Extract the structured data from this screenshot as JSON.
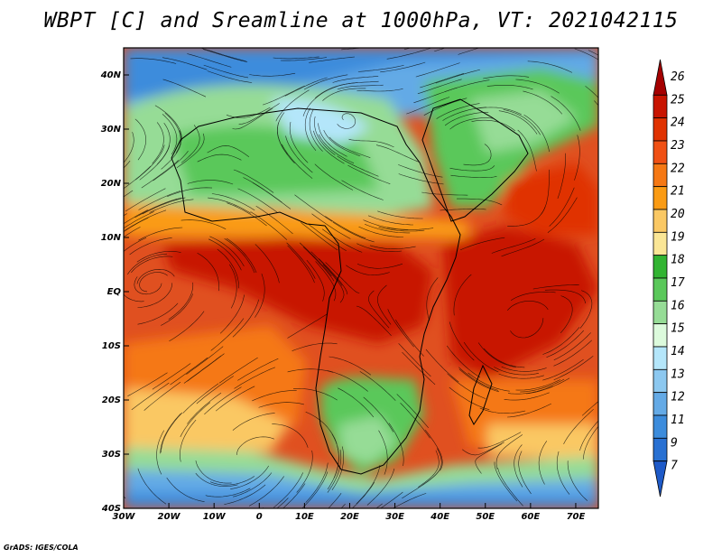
{
  "title": "WBPT [C] and Sreamline at 1000hPa, VT: 2021042115",
  "credit": "GrADS: IGES/COLA",
  "map": {
    "lon_range": [
      -30,
      75
    ],
    "lat_range": [
      -40,
      45
    ],
    "x_ticks": [
      {
        "lon": -30,
        "label": "30W"
      },
      {
        "lon": -20,
        "label": "20W"
      },
      {
        "lon": -10,
        "label": "10W"
      },
      {
        "lon": 0,
        "label": "0"
      },
      {
        "lon": 10,
        "label": "10E"
      },
      {
        "lon": 20,
        "label": "20E"
      },
      {
        "lon": 30,
        "label": "30E"
      },
      {
        "lon": 40,
        "label": "40E"
      },
      {
        "lon": 50,
        "label": "50E"
      },
      {
        "lon": 60,
        "label": "60E"
      },
      {
        "lon": 70,
        "label": "70E"
      }
    ],
    "y_ticks": [
      {
        "lat": 40,
        "label": "40N"
      },
      {
        "lat": 30,
        "label": "30N"
      },
      {
        "lat": 20,
        "label": "20N"
      },
      {
        "lat": 10,
        "label": "10N"
      },
      {
        "lat": 0,
        "label": "EQ"
      },
      {
        "lat": -10,
        "label": "10S"
      },
      {
        "lat": -20,
        "label": "20S"
      },
      {
        "lat": -30,
        "label": "30S"
      },
      {
        "lat": -40,
        "label": "40S"
      }
    ]
  },
  "colorbar": {
    "labels": [
      "26",
      "25",
      "24",
      "23",
      "22",
      "21",
      "20",
      "19",
      "18",
      "17",
      "16",
      "15",
      "14",
      "13",
      "12",
      "11",
      "9",
      "7"
    ],
    "colors": [
      "#a50000",
      "#c81400",
      "#e03200",
      "#f05014",
      "#f57814",
      "#fa9b14",
      "#fac864",
      "#fae696",
      "#32b432",
      "#5ac85a",
      "#96dc96",
      "#dcfadc",
      "#b4e6fa",
      "#8cc8f0",
      "#64aae6",
      "#3c8cdc",
      "#2870d2",
      "#1e5ac8"
    ]
  }
}
